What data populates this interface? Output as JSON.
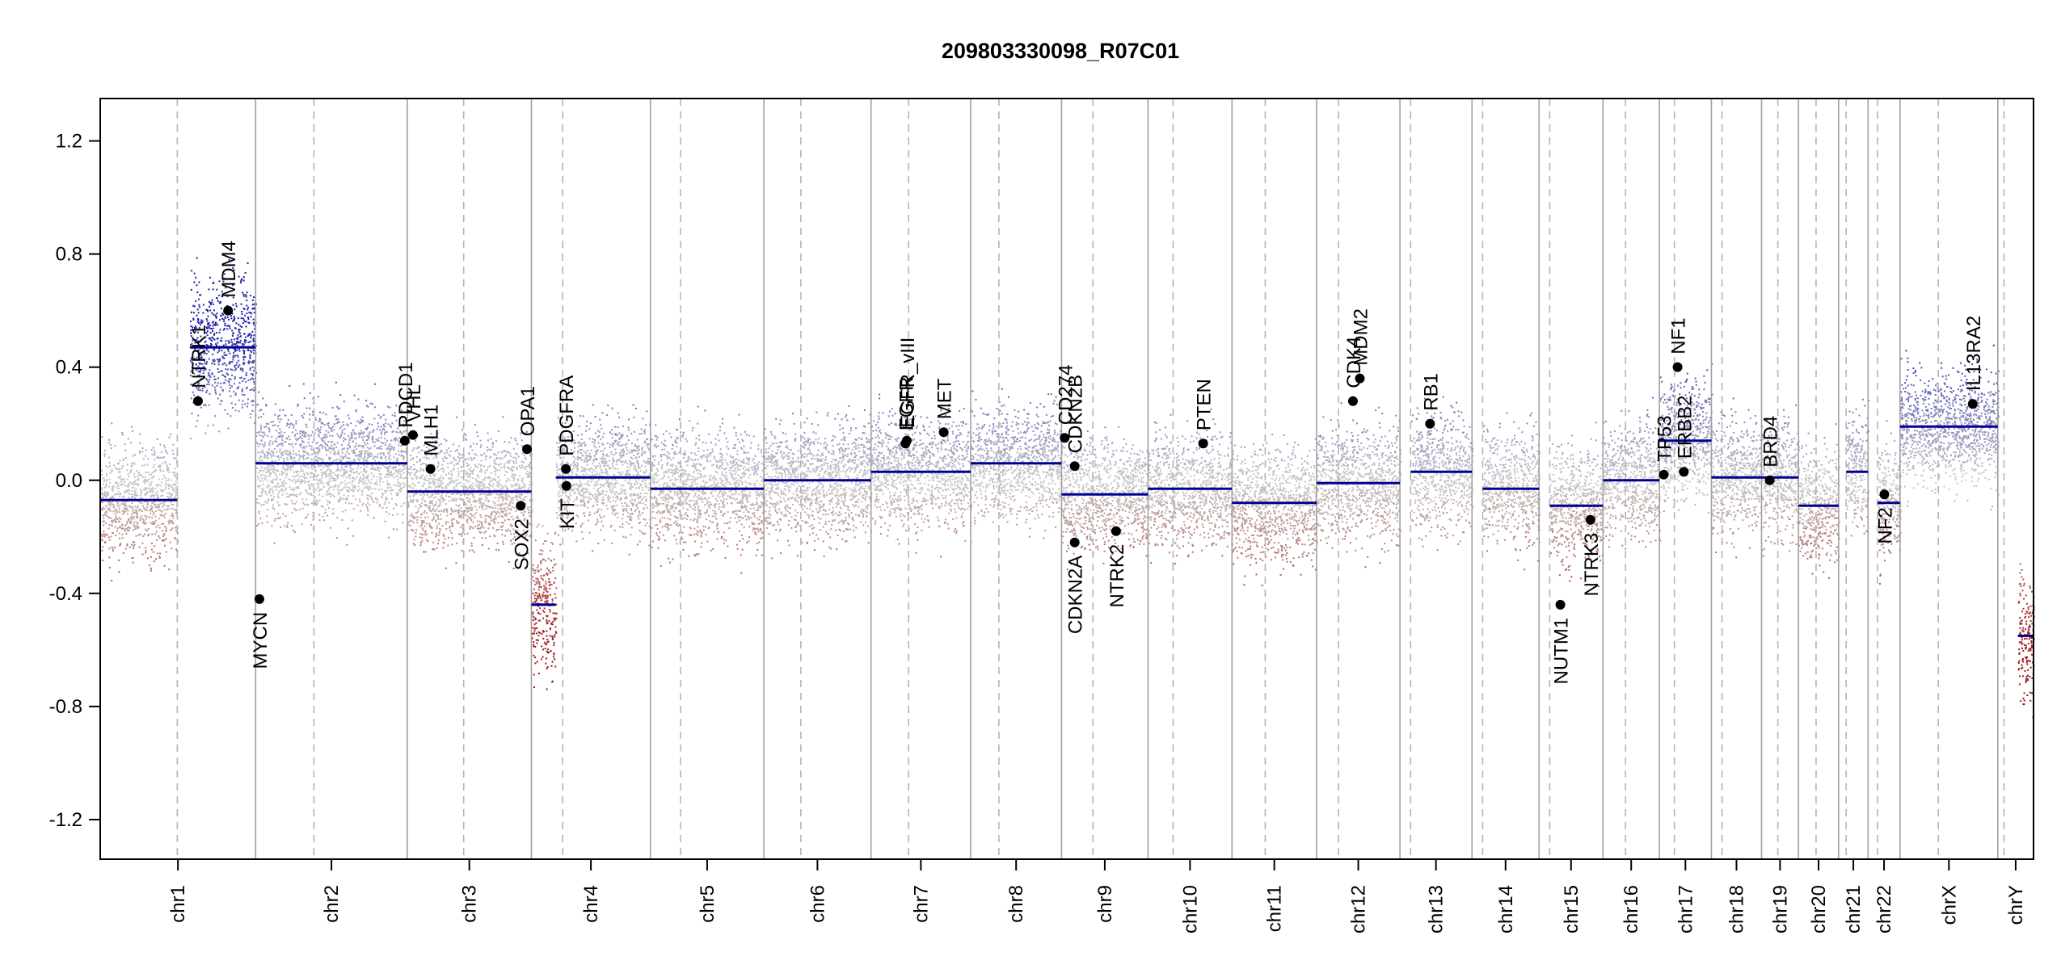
{
  "chart_data": {
    "type": "scatter",
    "subtype": "copy-number-genome-plot",
    "title": "209803330098_R07C01",
    "xlabel": "",
    "ylabel": "",
    "ylim": [
      -1.34,
      1.35
    ],
    "yticks": [
      -1.2,
      -0.8,
      -0.4,
      0.0,
      0.4,
      0.8,
      1.2
    ],
    "ytick_labels": [
      "-1.2",
      "-0.8",
      "-0.4",
      "0.0",
      "0.4",
      "0.8",
      "1.2"
    ],
    "colors": {
      "gain": "#1c1caa",
      "loss": "#a01414",
      "neutral": "#c8c8c8",
      "segment": "#000090",
      "gene_point": "#000000",
      "chrom_boundary": "#a0a0a0",
      "centromere": "#b4b4b4"
    },
    "chromosomes": [
      {
        "name": "chr1",
        "start": 0,
        "end": 248,
        "centromere": 123,
        "segments": [
          {
            "from": 0,
            "to": 123,
            "value": -0.07
          },
          {
            "from": 143,
            "to": 248,
            "value": 0.47
          }
        ]
      },
      {
        "name": "chr2",
        "start": 248,
        "end": 490,
        "centromere": 341,
        "segments": [
          {
            "from": 248,
            "to": 490,
            "value": 0.06
          }
        ]
      },
      {
        "name": "chr3",
        "start": 490,
        "end": 688,
        "centromere": 580,
        "segments": [
          {
            "from": 490,
            "to": 688,
            "value": -0.04
          }
        ]
      },
      {
        "name": "chr4",
        "start": 688,
        "end": 878,
        "centromere": 738,
        "segments": [
          {
            "from": 688,
            "to": 727,
            "value": -0.44
          },
          {
            "from": 727,
            "to": 878,
            "value": 0.01
          }
        ]
      },
      {
        "name": "chr5",
        "start": 878,
        "end": 1059,
        "centromere": 926,
        "segments": [
          {
            "from": 878,
            "to": 1059,
            "value": -0.03
          }
        ]
      },
      {
        "name": "chr6",
        "start": 1059,
        "end": 1230,
        "centromere": 1118,
        "segments": [
          {
            "from": 1059,
            "to": 1230,
            "value": 0.0
          }
        ]
      },
      {
        "name": "chr7",
        "start": 1230,
        "end": 1389,
        "centromere": 1290,
        "segments": [
          {
            "from": 1230,
            "to": 1389,
            "value": 0.03
          }
        ]
      },
      {
        "name": "chr8",
        "start": 1389,
        "end": 1534,
        "centromere": 1434,
        "segments": [
          {
            "from": 1389,
            "to": 1534,
            "value": 0.06
          }
        ]
      },
      {
        "name": "chr9",
        "start": 1534,
        "end": 1672,
        "centromere": 1584,
        "segments": [
          {
            "from": 1534,
            "to": 1672,
            "value": -0.05
          }
        ]
      },
      {
        "name": "chr10",
        "start": 1672,
        "end": 1806,
        "centromere": 1712,
        "segments": [
          {
            "from": 1672,
            "to": 1806,
            "value": -0.03
          }
        ]
      },
      {
        "name": "chr11",
        "start": 1806,
        "end": 1941,
        "centromere": 1859,
        "segments": [
          {
            "from": 1806,
            "to": 1941,
            "value": -0.08
          }
        ]
      },
      {
        "name": "chr12",
        "start": 1941,
        "end": 2074,
        "centromere": 1976,
        "segments": [
          {
            "from": 1941,
            "to": 2074,
            "value": -0.01
          }
        ]
      },
      {
        "name": "chr13",
        "start": 2074,
        "end": 2189,
        "centromere": 2091,
        "segments": [
          {
            "from": 2091,
            "to": 2189,
            "value": 0.03
          }
        ]
      },
      {
        "name": "chr14",
        "start": 2189,
        "end": 2296,
        "centromere": 2206,
        "segments": [
          {
            "from": 2206,
            "to": 2296,
            "value": -0.03
          }
        ]
      },
      {
        "name": "chr15",
        "start": 2296,
        "end": 2398,
        "centromere": 2313,
        "segments": [
          {
            "from": 2313,
            "to": 2398,
            "value": -0.09
          }
        ]
      },
      {
        "name": "chr16",
        "start": 2398,
        "end": 2488,
        "centromere": 2434,
        "segments": [
          {
            "from": 2398,
            "to": 2488,
            "value": 0.0
          }
        ]
      },
      {
        "name": "chr17",
        "start": 2488,
        "end": 2571,
        "centromere": 2512,
        "segments": [
          {
            "from": 2488,
            "to": 2571,
            "value": 0.14
          }
        ]
      },
      {
        "name": "chr18",
        "start": 2571,
        "end": 2651,
        "centromere": 2588,
        "segments": [
          {
            "from": 2571,
            "to": 2651,
            "value": 0.01
          }
        ]
      },
      {
        "name": "chr19",
        "start": 2651,
        "end": 2710,
        "centromere": 2677,
        "segments": [
          {
            "from": 2651,
            "to": 2710,
            "value": 0.01
          }
        ]
      },
      {
        "name": "chr20",
        "start": 2710,
        "end": 2774,
        "centromere": 2738,
        "segments": [
          {
            "from": 2710,
            "to": 2774,
            "value": -0.09
          }
        ]
      },
      {
        "name": "chr21",
        "start": 2774,
        "end": 2821,
        "centromere": 2786,
        "segments": [
          {
            "from": 2786,
            "to": 2821,
            "value": 0.03
          }
        ]
      },
      {
        "name": "chr22",
        "start": 2821,
        "end": 2872,
        "centromere": 2836,
        "segments": [
          {
            "from": 2836,
            "to": 2872,
            "value": -0.08
          }
        ]
      },
      {
        "name": "chrX",
        "start": 2872,
        "end": 3028,
        "centromere": 2933,
        "segments": [
          {
            "from": 2872,
            "to": 3028,
            "value": 0.19
          }
        ]
      },
      {
        "name": "chrY",
        "start": 3028,
        "end": 3085,
        "centromere": 3038,
        "segments": [
          {
            "from": 3060,
            "to": 3085,
            "value": -0.55
          }
        ]
      }
    ],
    "genes": [
      {
        "name": "NTRK1",
        "x": 156,
        "y": 0.28,
        "label_dir": "up"
      },
      {
        "name": "MDM4",
        "x": 204,
        "y": 0.6,
        "label_dir": "up"
      },
      {
        "name": "MYCN",
        "x": 254,
        "y": -0.42,
        "label_dir": "down"
      },
      {
        "name": "PDCD1",
        "x": 486,
        "y": 0.14,
        "label_dir": "up"
      },
      {
        "name": "VHL",
        "x": 499,
        "y": 0.16,
        "label_dir": "up"
      },
      {
        "name": "MLH1",
        "x": 527,
        "y": 0.04,
        "label_dir": "up"
      },
      {
        "name": "SOX2",
        "x": 671,
        "y": -0.09,
        "label_dir": "down"
      },
      {
        "name": "OPA1",
        "x": 681,
        "y": 0.11,
        "label_dir": "up"
      },
      {
        "name": "PDGFRA",
        "x": 743,
        "y": 0.04,
        "label_dir": "up"
      },
      {
        "name": "KIT",
        "x": 744,
        "y": -0.02,
        "label_dir": "down"
      },
      {
        "name": "EGFR",
        "x": 1285,
        "y": 0.13,
        "label_dir": "up"
      },
      {
        "name": "EGFR_vIII",
        "x": 1287,
        "y": 0.14,
        "label_dir": "up"
      },
      {
        "name": "MET",
        "x": 1346,
        "y": 0.17,
        "label_dir": "up"
      },
      {
        "name": "CD274",
        "x": 1539,
        "y": 0.15,
        "label_dir": "up"
      },
      {
        "name": "CDKN2B",
        "x": 1555,
        "y": 0.05,
        "label_dir": "up"
      },
      {
        "name": "CDKN2A",
        "x": 1555,
        "y": -0.22,
        "label_dir": "down"
      },
      {
        "name": "NTRK2",
        "x": 1621,
        "y": -0.18,
        "label_dir": "down"
      },
      {
        "name": "PTEN",
        "x": 1760,
        "y": 0.13,
        "label_dir": "up"
      },
      {
        "name": "CDK4",
        "x": 1999,
        "y": 0.28,
        "label_dir": "up"
      },
      {
        "name": "MDM2",
        "x": 2010,
        "y": 0.36,
        "label_dir": "up"
      },
      {
        "name": "RB1",
        "x": 2122,
        "y": 0.2,
        "label_dir": "up"
      },
      {
        "name": "NUTM1",
        "x": 2330,
        "y": -0.44,
        "label_dir": "down"
      },
      {
        "name": "NTRK3",
        "x": 2378,
        "y": -0.14,
        "label_dir": "down"
      },
      {
        "name": "TP53",
        "x": 2495,
        "y": 0.02,
        "label_dir": "up"
      },
      {
        "name": "NF1",
        "x": 2517,
        "y": 0.4,
        "label_dir": "up"
      },
      {
        "name": "ERBB2",
        "x": 2527,
        "y": 0.03,
        "label_dir": "up"
      },
      {
        "name": "BRD4",
        "x": 2664,
        "y": 0.0,
        "label_dir": "up"
      },
      {
        "name": "NF2",
        "x": 2847,
        "y": -0.05,
        "label_dir": "down"
      },
      {
        "name": "IL13RA2",
        "x": 2988,
        "y": 0.27,
        "label_dir": "up"
      }
    ],
    "xlim": [
      0,
      3085
    ]
  }
}
